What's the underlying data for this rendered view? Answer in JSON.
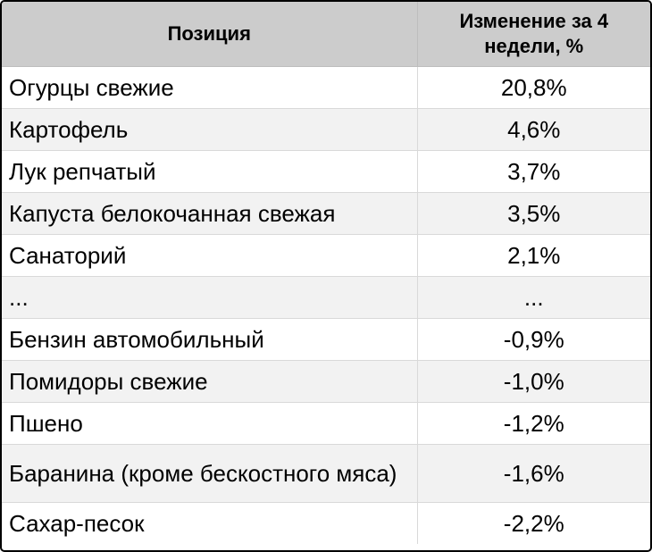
{
  "chart_data": {
    "type": "table",
    "columns": [
      "Позиция",
      "Изменение за 4 недели, %"
    ],
    "rows": [
      {
        "name": "Огурцы свежие",
        "value": "20,8%"
      },
      {
        "name": "Картофель",
        "value": "4,6%"
      },
      {
        "name": "Лук репчатый",
        "value": "3,7%"
      },
      {
        "name": "Капуста белокочанная свежая",
        "value": "3,5%"
      },
      {
        "name": "Санаторий",
        "value": "2,1%"
      },
      {
        "name": "...",
        "value": "..."
      },
      {
        "name": "Бензин автомобильный",
        "value": "-0,9%"
      },
      {
        "name": "Помидоры свежие",
        "value": "-1,0%"
      },
      {
        "name": "Пшено",
        "value": "-1,2%"
      },
      {
        "name": "Баранина (кроме бескостного мяса)",
        "value": "-1,6%"
      },
      {
        "name": "Сахар-песок",
        "value": "-2,2%"
      }
    ]
  },
  "colors": {
    "header_bg": "#cccccc",
    "stripe_bg": "#f2f2f2",
    "border": "#000000"
  }
}
